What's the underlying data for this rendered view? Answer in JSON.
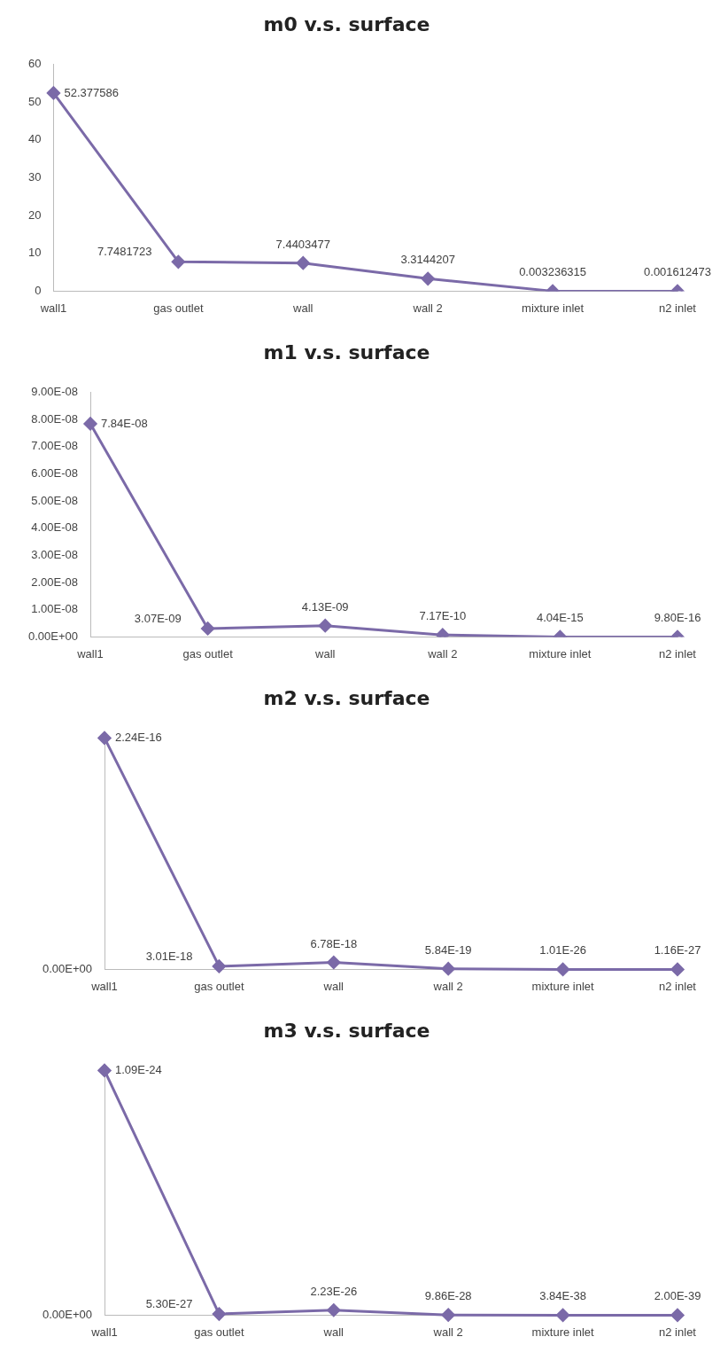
{
  "chart_data": [
    {
      "type": "line",
      "title": "m0 v.s. surface",
      "categories": [
        "wall1",
        "gas outlet",
        "wall",
        "wall 2",
        "mixture inlet",
        "n2 inlet"
      ],
      "values": [
        52.377586,
        7.7481723,
        7.4403477,
        3.3144207,
        0.003236315,
        0.001612473
      ],
      "value_labels": [
        "52.377586",
        "7.7481723",
        "7.4403477",
        "3.3144207",
        "0.003236315",
        "0.001612473"
      ],
      "color": "#7b6aa8",
      "marker": "diamond",
      "ylim": [
        0,
        60
      ],
      "yticks": [
        0,
        10,
        20,
        30,
        40,
        50,
        60
      ]
    },
    {
      "type": "line",
      "title": "m1 v.s. surface",
      "categories": [
        "wall1",
        "gas outlet",
        "wall",
        "wall 2",
        "mixture inlet",
        "n2 inlet"
      ],
      "values": [
        7.84e-08,
        3.07e-09,
        4.13e-09,
        7.17e-10,
        4.04e-15,
        9.8e-16
      ],
      "value_labels": [
        "7.84E-08",
        "3.07E-09",
        "4.13E-09",
        "7.17E-10",
        "4.04E-15",
        "9.80E-16"
      ],
      "color": "#7b6aa8",
      "marker": "diamond",
      "ylim": [
        0,
        9e-08
      ],
      "yticks": [
        {
          "value": 0,
          "label": "0.00E+00"
        },
        {
          "value": 1e-08,
          "label": "1.00E-08"
        },
        {
          "value": 2e-08,
          "label": "2.00E-08"
        },
        {
          "value": 3e-08,
          "label": "3.00E-08"
        },
        {
          "value": 4e-08,
          "label": "4.00E-08"
        },
        {
          "value": 5e-08,
          "label": "5.00E-08"
        },
        {
          "value": 6e-08,
          "label": "6.00E-08"
        },
        {
          "value": 7e-08,
          "label": "7.00E-08"
        },
        {
          "value": 8e-08,
          "label": "8.00E-08"
        },
        {
          "value": 9e-08,
          "label": "9.00E-08"
        }
      ]
    },
    {
      "type": "line",
      "title": "m2 v.s. surface",
      "categories": [
        "wall1",
        "gas outlet",
        "wall",
        "wall 2",
        "mixture inlet",
        "n2 inlet"
      ],
      "values": [
        2.24e-16,
        3.01e-18,
        6.78e-18,
        5.84e-19,
        1.01e-26,
        1.16e-27
      ],
      "value_labels": [
        "2.24E-16",
        "3.01E-18",
        "6.78E-18",
        "5.84E-19",
        "1.01E-26",
        "1.16E-27"
      ],
      "color": "#7b6aa8",
      "marker": "diamond",
      "annotations": [
        "0.00E+00"
      ]
    },
    {
      "type": "line",
      "title": "m3 v.s. surface",
      "categories": [
        "wall1",
        "gas outlet",
        "wall",
        "wall 2",
        "mixture inlet",
        "n2 inlet"
      ],
      "values": [
        1.09e-24,
        5.3e-27,
        2.23e-26,
        9.86e-28,
        3.84e-38,
        2e-39
      ],
      "value_labels": [
        "1.09E-24",
        "5.30E-27",
        "2.23E-26",
        "9.86E-28",
        "3.84E-38",
        "2.00E-39"
      ],
      "color": "#7b6aa8",
      "marker": "diamond",
      "annotations": [
        "0.00E+00"
      ]
    }
  ]
}
